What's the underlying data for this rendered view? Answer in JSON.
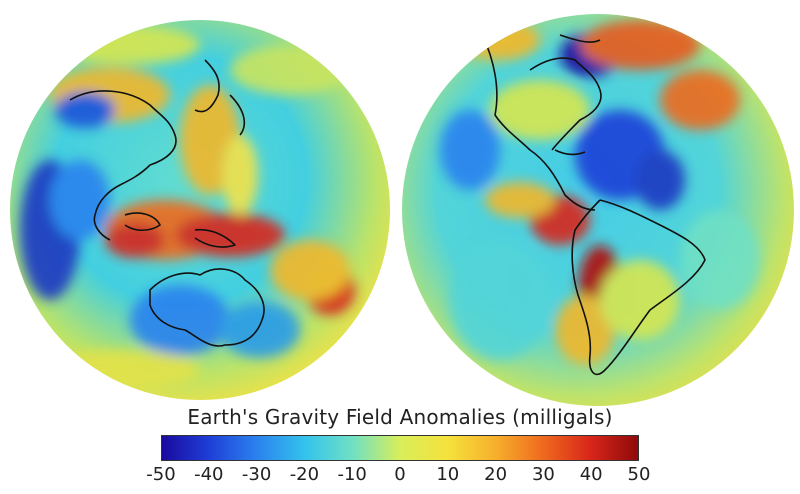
{
  "title": "Earth's Gravity Field Anomalies (milligals)",
  "scale": {
    "min": -50,
    "max": 50,
    "tick_labels": [
      "-50",
      "-40",
      "-30",
      "-20",
      "-10",
      "0",
      "10",
      "20",
      "30",
      "40",
      "50"
    ],
    "colors": [
      "#1a0a9e",
      "#1f3fd8",
      "#2b82ee",
      "#33c3ec",
      "#6fe0c4",
      "#d8ee5a",
      "#f5e23c",
      "#f6b02c",
      "#ef6a1e",
      "#d8261a",
      "#8e0a0a"
    ]
  },
  "globes": [
    {
      "name": "eastern-hemisphere"
    },
    {
      "name": "western-hemisphere"
    }
  ]
}
